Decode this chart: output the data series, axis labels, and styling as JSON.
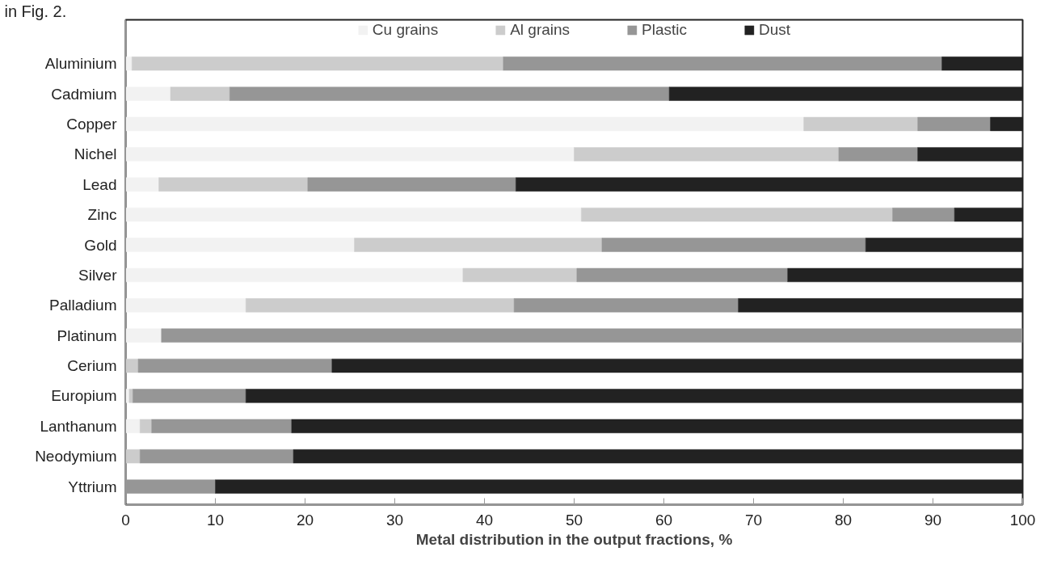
{
  "chart_data": {
    "type": "bar",
    "orientation": "horizontal",
    "stacked": true,
    "categories": [
      "Aluminium",
      "Cadmium",
      "Copper",
      "Nichel",
      "Lead",
      "Zinc",
      "Gold",
      "Silver",
      "Palladium",
      "Platinum",
      "Cerium",
      "Europium",
      "Lanthanum",
      "Neodymium",
      "Yttrium"
    ],
    "series": [
      {
        "name": "Cu grains",
        "color": "#f2f2f2",
        "values": [
          0.7,
          5.0,
          75.6,
          50.0,
          3.7,
          50.8,
          25.5,
          37.6,
          13.4,
          4.0,
          0,
          0.4,
          1.6,
          0,
          0
        ]
      },
      {
        "name": "Al grains",
        "color": "#cccccc",
        "values": [
          41.4,
          6.6,
          12.7,
          29.5,
          16.6,
          34.7,
          27.6,
          12.7,
          29.9,
          0,
          1.4,
          0.4,
          1.3,
          1.6,
          0
        ]
      },
      {
        "name": "Plastic",
        "color": "#969696",
        "values": [
          48.9,
          49.0,
          8.1,
          8.8,
          23.2,
          6.9,
          29.4,
          23.5,
          25.0,
          96.0,
          21.6,
          12.6,
          15.6,
          17.1,
          10.0
        ]
      },
      {
        "name": "Dust",
        "color": "#222222",
        "values": [
          9.0,
          39.4,
          3.6,
          11.7,
          56.5,
          7.6,
          17.5,
          26.2,
          31.7,
          0,
          77.0,
          86.6,
          81.5,
          81.3,
          90.0
        ]
      }
    ],
    "xlabel": "Metal distribution in the output fractions, %",
    "xlim": [
      0,
      100
    ],
    "xticks": [
      0,
      10,
      20,
      30,
      40,
      50,
      60,
      70,
      80,
      90,
      100
    ],
    "legend": "top",
    "grid": false,
    "annotations": [
      "in Fig. 2."
    ]
  }
}
